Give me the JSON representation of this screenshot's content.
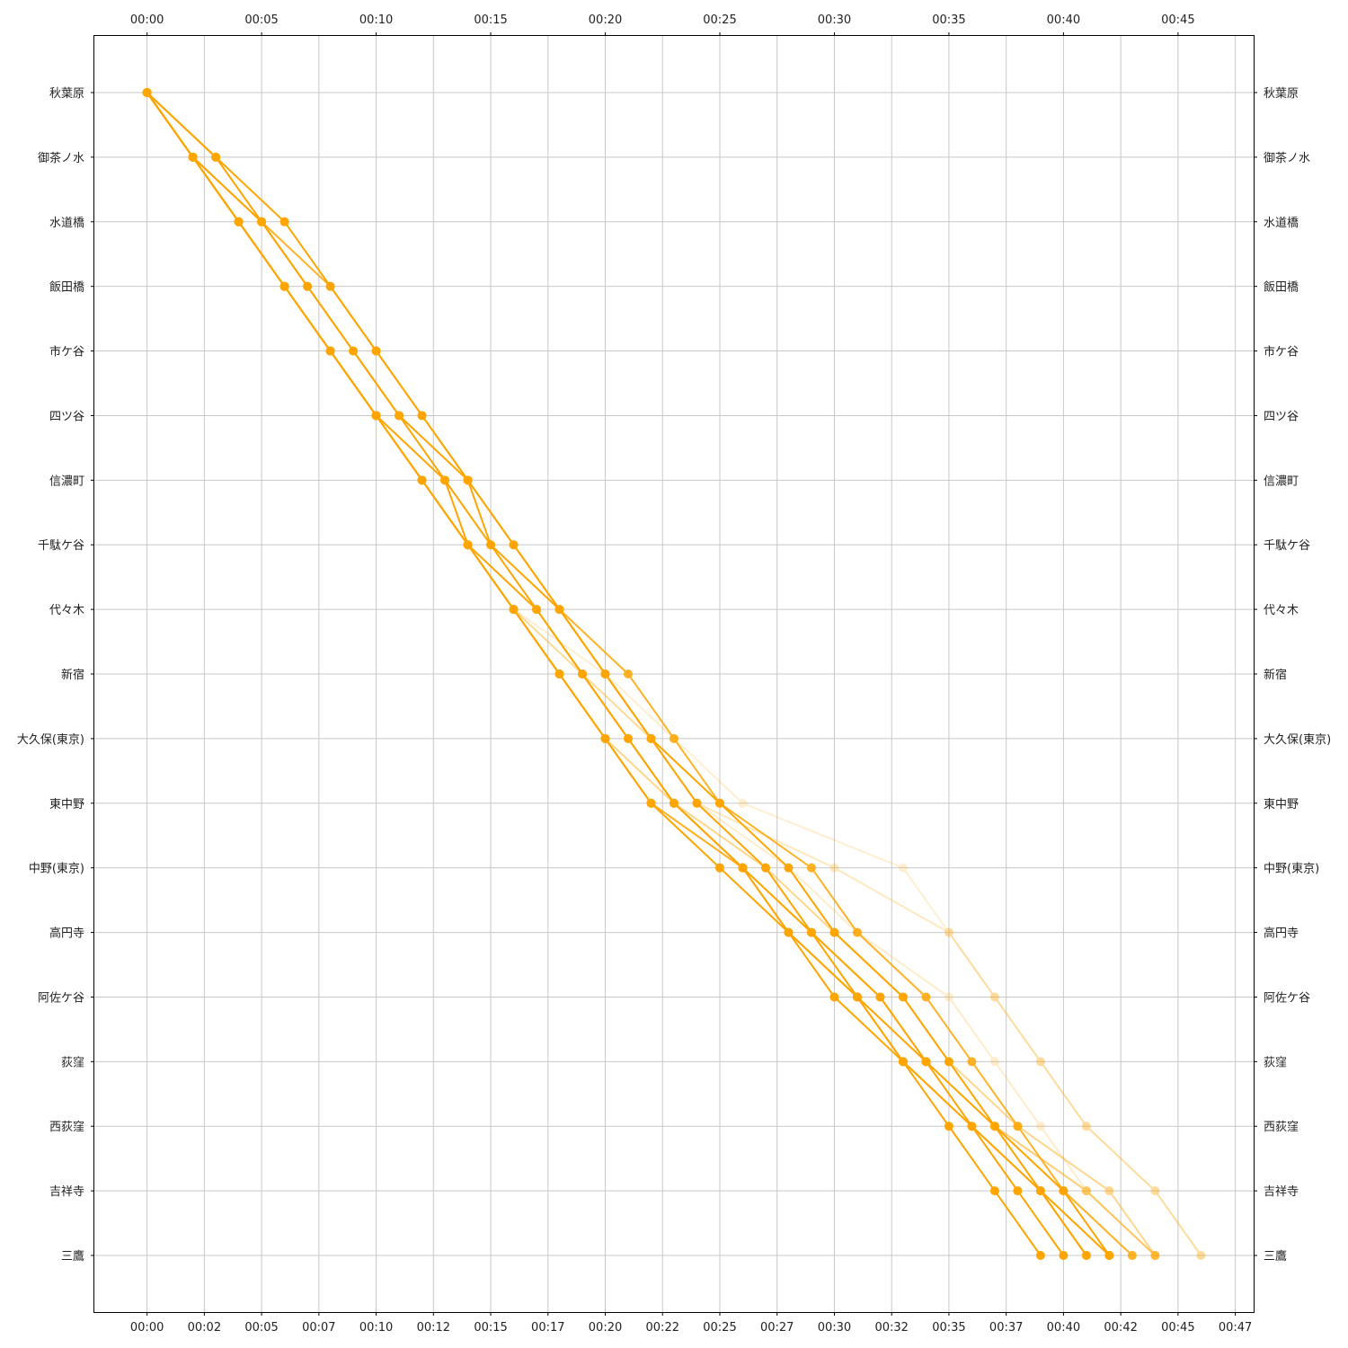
{
  "chart_data": {
    "type": "line",
    "title": "",
    "xlabel": "",
    "ylabel": "",
    "color": "#ffa500",
    "grid": true,
    "x_unit": "minutes",
    "xlim": [
      -2.3,
      48.3
    ],
    "stations": [
      "秋葉原",
      "御茶ノ水",
      "水道橋",
      "飯田橋",
      "市ケ谷",
      "四ツ谷",
      "信濃町",
      "千駄ケ谷",
      "代々木",
      "新宿",
      "大久保(東京)",
      "東中野",
      "中野(東京)",
      "高円寺",
      "阿佐ケ谷",
      "荻窪",
      "西荻窪",
      "吉祥寺",
      "三鷹"
    ],
    "top_ticks": [
      "00:00",
      "00:05",
      "00:10",
      "00:15",
      "00:20",
      "00:25",
      "00:30",
      "00:35",
      "00:40",
      "00:45"
    ],
    "top_tick_values": [
      0,
      5,
      10,
      15,
      20,
      25,
      30,
      35,
      40,
      45
    ],
    "bottom_ticks": [
      "00:00",
      "00:02",
      "00:05",
      "00:07",
      "00:10",
      "00:12",
      "00:15",
      "00:17",
      "00:20",
      "00:22",
      "00:25",
      "00:27",
      "00:30",
      "00:32",
      "00:35",
      "00:37",
      "00:40",
      "00:42",
      "00:45",
      "00:47"
    ],
    "bottom_tick_values": [
      0,
      2.5,
      5,
      7.5,
      10,
      12.5,
      15,
      17.5,
      20,
      22.5,
      25,
      27.5,
      30,
      32.5,
      35,
      37.5,
      40,
      42.5,
      45,
      47.5
    ],
    "series": [
      {
        "opacity": 1.0,
        "times": [
          0,
          2,
          4,
          6,
          8,
          10,
          12,
          14,
          16,
          18,
          20,
          22,
          25,
          28,
          30,
          33,
          35,
          37,
          39
        ]
      },
      {
        "opacity": 1.0,
        "times": [
          0,
          2,
          5,
          7,
          9,
          11,
          13,
          15,
          17,
          19,
          21,
          23,
          26,
          28,
          31,
          33,
          36,
          38,
          40
        ]
      },
      {
        "opacity": 1.0,
        "times": [
          0,
          3,
          6,
          8,
          10,
          12,
          14,
          16,
          18,
          20,
          22,
          24,
          27,
          29,
          31,
          34,
          36,
          39,
          41
        ]
      },
      {
        "opacity": 1.0,
        "times": [
          0,
          2,
          4,
          6,
          8,
          10,
          13,
          14,
          17,
          19,
          21,
          23,
          26,
          29,
          32,
          34,
          37,
          39,
          42
        ]
      },
      {
        "opacity": 1.0,
        "times": [
          0,
          3,
          5,
          7,
          9,
          11,
          14,
          15,
          18,
          20,
          22,
          25,
          28,
          30,
          33,
          35,
          37,
          40,
          42
        ]
      },
      {
        "opacity": 0.85,
        "times": [
          0,
          2,
          5,
          8,
          10,
          12,
          14,
          16,
          18,
          21,
          23,
          25,
          29,
          31,
          34,
          36,
          38,
          40,
          43
        ]
      },
      {
        "opacity": 0.7,
        "times": [
          0,
          2,
          4,
          6,
          8,
          10,
          12,
          14,
          16,
          18,
          20,
          22,
          26,
          28,
          31,
          33,
          36,
          39,
          41
        ]
      },
      {
        "opacity": 0.55,
        "times": [
          0,
          2,
          4,
          6,
          8,
          10,
          12,
          14,
          16,
          18,
          20,
          22,
          26,
          29,
          32,
          34,
          37,
          41,
          44
        ]
      },
      {
        "opacity": 0.45,
        "times": [
          0,
          2,
          4,
          6,
          8,
          10,
          12,
          14,
          16,
          18,
          20,
          23,
          27,
          30,
          33,
          35,
          38,
          42,
          44
        ]
      },
      {
        "opacity": 0.25,
        "times": [
          0,
          2,
          4,
          6,
          8,
          10,
          12,
          14,
          16,
          19,
          22,
          24,
          30,
          35,
          37,
          39,
          41,
          44,
          46
        ]
      },
      {
        "opacity": 0.2,
        "times": [
          0,
          2,
          4,
          6,
          8,
          10,
          12,
          14,
          16,
          19,
          22,
          24,
          28,
          31,
          35,
          37,
          39,
          41,
          44
        ]
      },
      {
        "opacity": 0.18,
        "times": [
          0,
          2,
          4,
          6,
          8,
          10,
          12,
          14,
          16,
          20,
          23,
          26,
          33,
          35,
          37,
          39,
          41,
          44,
          46
        ]
      }
    ]
  }
}
